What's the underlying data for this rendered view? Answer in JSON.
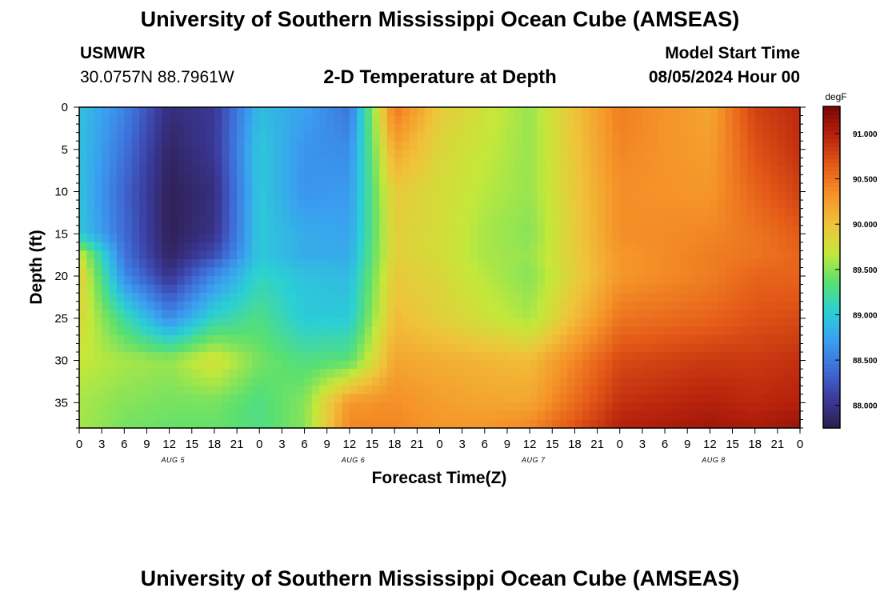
{
  "header": {
    "title": "University of Southern Mississippi Ocean Cube (AMSEAS)",
    "station": "USMWR",
    "coordinates": "30.0757N  88.7961W",
    "plot_title": "2-D Temperature at Depth",
    "model_start_label": "Model Start Time",
    "model_start_value": "08/05/2024 Hour 00"
  },
  "footer": {
    "title": "University of Southern Mississippi Ocean Cube (AMSEAS)"
  },
  "chart_data": {
    "type": "heatmap",
    "xlabel": "Forecast Time(Z)",
    "ylabel": "Depth (ft)",
    "colorbar_unit": "degF",
    "x_hours_range": [
      0,
      96
    ],
    "x_tick_labels": [
      "0",
      "3",
      "6",
      "9",
      "12",
      "15",
      "18",
      "21",
      "0",
      "3",
      "6",
      "9",
      "12",
      "15",
      "18",
      "21",
      "0",
      "3",
      "6",
      "9",
      "12",
      "15",
      "18",
      "21",
      "0",
      "3",
      "6",
      "9",
      "12",
      "15",
      "18",
      "21",
      "0"
    ],
    "day_labels": [
      "AUG 5",
      "AUG 6",
      "AUG 7",
      "AUG 8"
    ],
    "ylim": [
      0,
      38
    ],
    "y_inverted": true,
    "y_ticks": [
      0,
      5,
      10,
      15,
      20,
      25,
      30,
      35
    ],
    "colorbar_range": [
      87.75,
      91.3
    ],
    "colorbar_ticks": [
      "88.000",
      "88.500",
      "89.000",
      "89.500",
      "90.000",
      "90.500",
      "91.000"
    ],
    "colormap": [
      "#2e1c4a",
      "#3a3a9a",
      "#3f6bd6",
      "#3a9ff0",
      "#2bd0d4",
      "#5ae070",
      "#c4e83a",
      "#f0c23a",
      "#f59228",
      "#e45a18",
      "#b8230c",
      "#7a0606"
    ],
    "depths_ft": [
      0,
      5,
      10,
      15,
      17.5,
      20,
      25,
      30,
      35,
      38
    ],
    "times_hours": [
      0,
      6,
      12,
      18,
      24,
      30,
      36,
      42,
      48,
      54,
      60,
      72,
      84,
      90,
      96
    ],
    "values_degF": [
      [
        88.95,
        88.55,
        87.95,
        88.05,
        88.9,
        88.75,
        88.45,
        90.5,
        89.95,
        89.75,
        89.55,
        90.45,
        90.2,
        90.8,
        90.95
      ],
      [
        88.95,
        88.45,
        87.85,
        88.05,
        89.0,
        88.65,
        88.6,
        90.2,
        89.85,
        89.7,
        89.55,
        90.4,
        90.25,
        90.7,
        90.9
      ],
      [
        88.95,
        88.35,
        87.8,
        87.95,
        89.0,
        88.65,
        88.7,
        89.95,
        89.8,
        89.65,
        89.55,
        90.35,
        90.3,
        90.6,
        90.8
      ],
      [
        89.0,
        88.4,
        87.8,
        88.0,
        89.0,
        88.8,
        88.75,
        89.9,
        89.8,
        89.6,
        89.5,
        90.35,
        90.4,
        90.5,
        90.65
      ],
      [
        89.75,
        88.45,
        87.85,
        88.2,
        89.0,
        88.8,
        88.8,
        89.9,
        89.8,
        89.6,
        89.55,
        90.3,
        90.45,
        90.5,
        90.6
      ],
      [
        89.95,
        88.6,
        88.0,
        88.6,
        89.1,
        88.95,
        88.9,
        89.95,
        89.85,
        89.65,
        89.5,
        90.3,
        90.45,
        90.6,
        90.6
      ],
      [
        89.85,
        89.2,
        88.6,
        89.1,
        89.3,
        89.0,
        89.0,
        90.05,
        89.9,
        89.75,
        89.6,
        90.5,
        90.6,
        90.7,
        90.75
      ],
      [
        89.7,
        89.6,
        89.55,
        89.8,
        89.45,
        89.3,
        89.35,
        90.2,
        90.15,
        90.1,
        90.05,
        90.75,
        90.85,
        90.85,
        90.9
      ],
      [
        89.6,
        89.5,
        89.45,
        89.45,
        89.3,
        89.5,
        90.3,
        90.35,
        90.25,
        90.2,
        90.2,
        90.9,
        91.0,
        90.95,
        91.0
      ],
      [
        89.6,
        89.45,
        89.4,
        89.4,
        89.3,
        89.5,
        90.4,
        90.4,
        90.3,
        90.3,
        90.4,
        91.0,
        91.1,
        91.05,
        91.15
      ]
    ]
  }
}
